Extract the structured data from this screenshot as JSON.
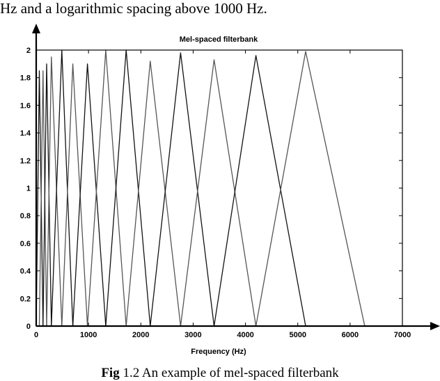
{
  "page": {
    "top_text": "Hz and a logarithmic spacing above 1000 Hz.",
    "caption_prefix": "Fig",
    "caption_rest": " 1.2 An example of mel-spaced filterbank"
  },
  "chart_data": {
    "type": "line",
    "title": "Mel-spaced filterbank",
    "xlabel": "Frequency (Hz)",
    "ylabel": "",
    "xlim": [
      0,
      7000
    ],
    "ylim": [
      0,
      2
    ],
    "x_ticks": [
      0,
      1000,
      2000,
      3000,
      4000,
      5000,
      6000,
      7000
    ],
    "y_ticks": [
      0,
      0.2,
      0.4,
      0.6,
      0.8,
      1,
      1.2,
      1.4,
      1.6,
      1.8,
      2
    ],
    "y_tick_labels": [
      "0",
      "0.2",
      "0.4",
      "0.6",
      "0.8",
      "1",
      "1.2",
      "1.4",
      "1.6",
      "1.8",
      "2"
    ],
    "grid": false,
    "filters": [
      {
        "x": [
          0,
          60,
          130
        ],
        "y": [
          0,
          1.85,
          0
        ]
      },
      {
        "x": [
          60,
          130,
          200
        ],
        "y": [
          0,
          1.85,
          0
        ]
      },
      {
        "x": [
          130,
          200,
          290
        ],
        "y": [
          0,
          1.9,
          0
        ]
      },
      {
        "x": [
          200,
          290,
          490
        ],
        "y": [
          0,
          1.95,
          0
        ]
      },
      {
        "x": [
          290,
          490,
          700
        ],
        "y": [
          0,
          2.0,
          0
        ]
      },
      {
        "x": [
          490,
          700,
          980
        ],
        "y": [
          0,
          1.9,
          0
        ]
      },
      {
        "x": [
          700,
          980,
          1330
        ],
        "y": [
          0,
          1.9,
          0
        ]
      },
      {
        "x": [
          980,
          1330,
          1720
        ],
        "y": [
          0,
          2.0,
          0
        ]
      },
      {
        "x": [
          1330,
          1720,
          2180
        ],
        "y": [
          0,
          2.0,
          0
        ]
      },
      {
        "x": [
          1720,
          2180,
          2760
        ],
        "y": [
          0,
          1.92,
          0
        ]
      },
      {
        "x": [
          2180,
          2760,
          3400
        ],
        "y": [
          0,
          1.98,
          0
        ]
      },
      {
        "x": [
          2760,
          3400,
          4200
        ],
        "y": [
          0,
          1.93,
          0
        ]
      },
      {
        "x": [
          3400,
          4200,
          5150
        ],
        "y": [
          0,
          1.96,
          0
        ]
      },
      {
        "x": [
          4200,
          5150,
          6280
        ],
        "y": [
          0,
          1.99,
          0
        ]
      }
    ]
  }
}
